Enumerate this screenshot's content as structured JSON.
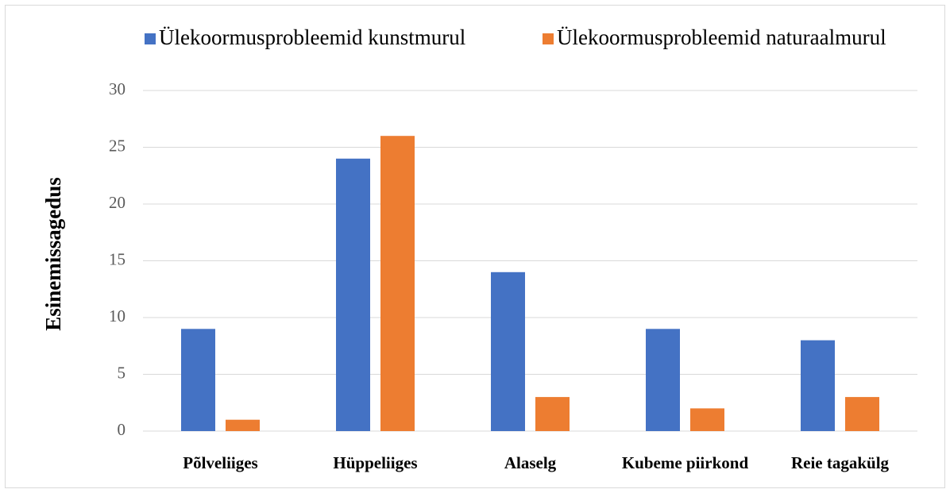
{
  "chart_data": {
    "type": "bar",
    "y_label": "Esinemissagedus",
    "categories": [
      "Põlveliiges",
      "Hüppeliiges",
      "Alaselg",
      "Kubeme piirkond",
      "Reie tagakülg"
    ],
    "series": [
      {
        "name": "Ülekoormusprobleemid kunstmurul",
        "color": "#4472c4",
        "values": [
          9,
          24,
          14,
          9,
          8
        ]
      },
      {
        "name": "Ülekoormusprobleemid naturaalmurul",
        "color": "#ed7d31",
        "values": [
          1,
          26,
          3,
          2,
          3
        ]
      }
    ],
    "ylim": [
      0,
      30
    ],
    "yticks": [
      0,
      5,
      10,
      15,
      20,
      25,
      30
    ],
    "grid": true,
    "legend": "top"
  }
}
